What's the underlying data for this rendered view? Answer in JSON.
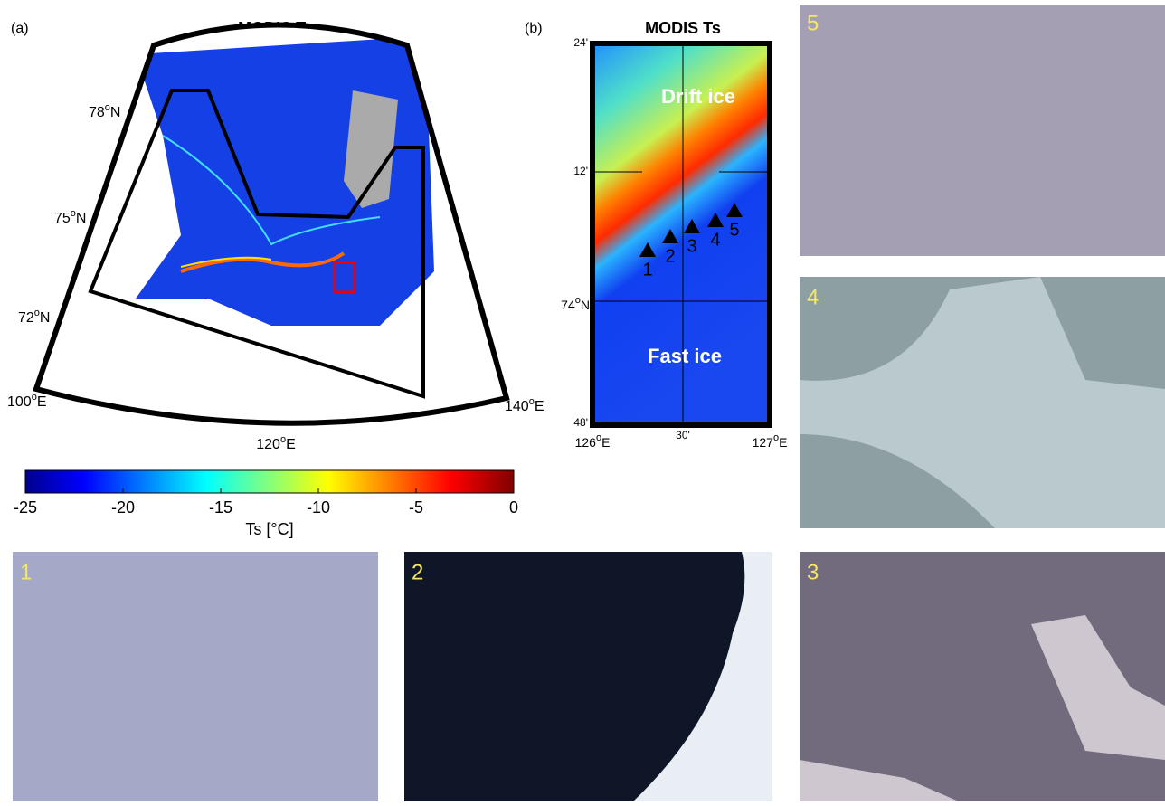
{
  "degree_mark": "o",
  "panel_a": {
    "tag": "(a)",
    "title": "MODIS Ts",
    "lat_labels": [
      {
        "deg": "78",
        "hemi": "N"
      },
      {
        "deg": "75",
        "hemi": "N"
      },
      {
        "deg": "72",
        "hemi": "N"
      }
    ],
    "lon_labels": [
      {
        "deg": "100",
        "hemi": "E"
      },
      {
        "deg": "120",
        "hemi": "E"
      },
      {
        "deg": "140",
        "hemi": "E"
      }
    ]
  },
  "colorbar": {
    "lim": [
      -25,
      0
    ],
    "ticks": [
      -25,
      -20,
      -15,
      -10,
      -5,
      0
    ],
    "label": "Ts [°C]"
  },
  "panel_b": {
    "tag": "(b)",
    "title": "MODIS Ts",
    "region_labels": [
      "Drift ice",
      "Fast ice"
    ],
    "stations": [
      "1",
      "2",
      "3",
      "4",
      "5"
    ],
    "lat_ticks": [
      "24'",
      "12'",
      "48'"
    ],
    "lat_main": {
      "deg": "74",
      "hemi": "N"
    },
    "lon_ticks": [
      "30'"
    ],
    "lon_main": [
      {
        "deg": "126",
        "hemi": "E"
      },
      {
        "deg": "127",
        "hemi": "E"
      }
    ]
  },
  "photos": [
    "1",
    "2",
    "3",
    "4",
    "5"
  ]
}
